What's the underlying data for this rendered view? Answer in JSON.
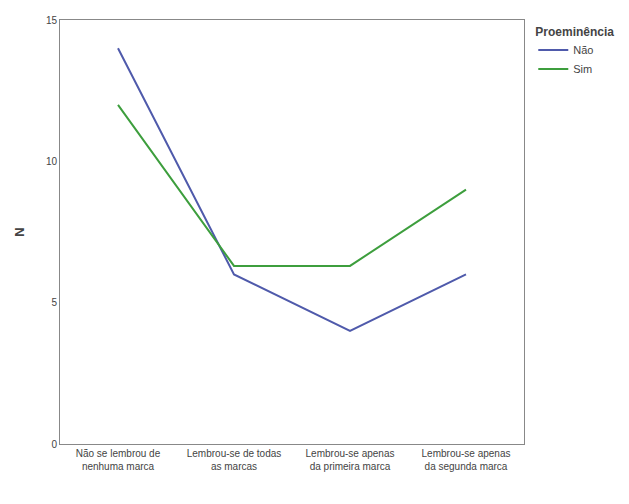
{
  "chart_data": {
    "type": "line",
    "categories": [
      "Não se lembrou de\nnenhuma marca",
      "Lembrou-se de todas\nas marcas",
      "Lembrou-se apenas\nda primeira marca",
      "Lembrou-se apenas\nda segunda marca"
    ],
    "series": [
      {
        "name": "Não",
        "color": "#4f5aab",
        "values": [
          14,
          6,
          4,
          6
        ]
      },
      {
        "name": "Sim",
        "color": "#3d9e3d",
        "values": [
          12,
          6.3,
          6.3,
          9
        ]
      }
    ],
    "ylabel": "N",
    "legend_title": "Proeminência",
    "ylim": [
      0,
      15
    ],
    "yticks": [
      0,
      5,
      10,
      15
    ],
    "grid": false,
    "legend": "right"
  }
}
